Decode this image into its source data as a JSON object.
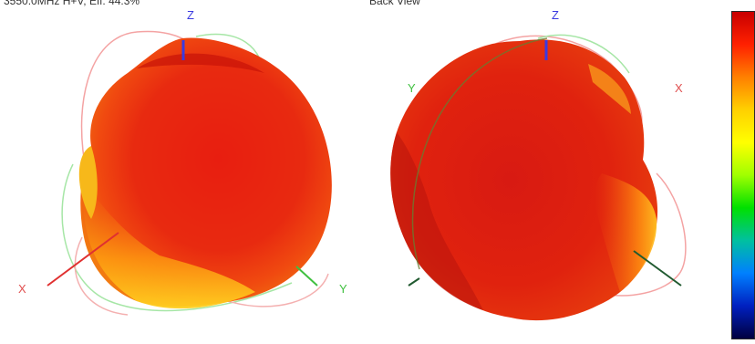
{
  "front_view": {
    "caption": "3550.0MHz H+V, Eff: 44.3%",
    "axis_labels": {
      "z": "Z",
      "x": "X",
      "y": "Y"
    },
    "axis_colors": {
      "z": "#3a3ae0",
      "x": "#e05050",
      "y": "#40c040"
    }
  },
  "back_view": {
    "caption": "Back View",
    "axis_labels": {
      "z": "Z",
      "x": "X",
      "y": "Y"
    },
    "axis_colors": {
      "z": "#3a3ae0",
      "x": "#e05050",
      "y": "#40c040"
    }
  },
  "colorbar": {
    "gradient": [
      "#c80000",
      "#ff2000",
      "#ff8000",
      "#ffd000",
      "#ffff00",
      "#a0ff00",
      "#00e000",
      "#00c0a0",
      "#0080ff",
      "#0020c0",
      "#000040"
    ]
  }
}
